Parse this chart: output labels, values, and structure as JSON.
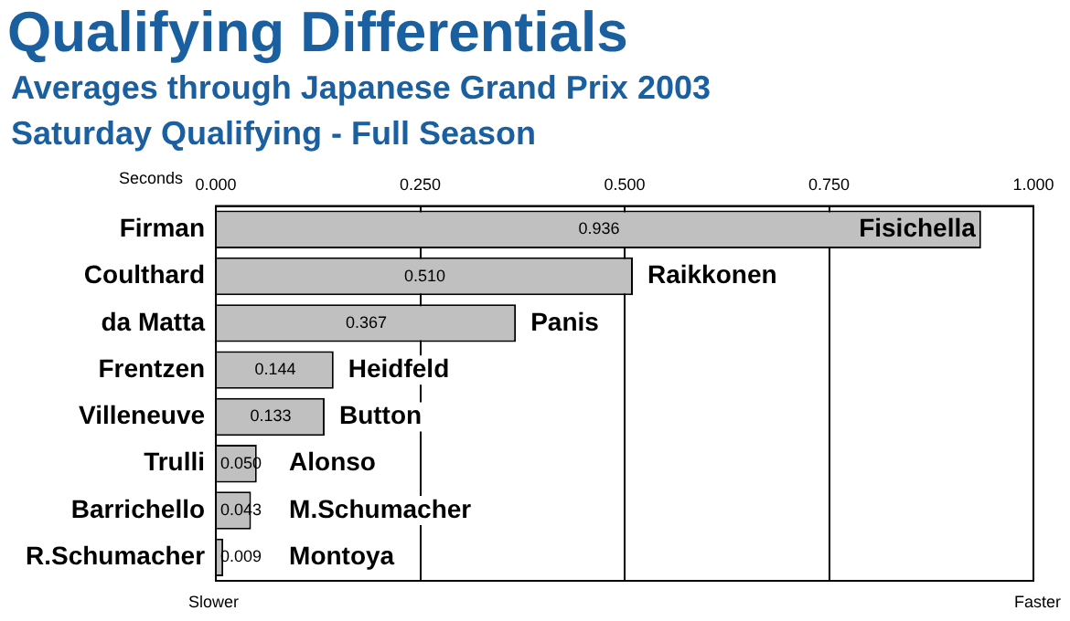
{
  "chart_data": {
    "type": "bar",
    "orientation": "horizontal",
    "title": "Qualifying Differentials",
    "subtitle": "Averages through Japanese Grand Prix 2003\nSaturday Qualifying - Full Season",
    "xlabel": "Seconds",
    "categories": [
      "Firman",
      "Coulthard",
      "da Matta",
      "Frentzen",
      "Villeneuve",
      "Trulli",
      "Barrichello",
      "R.Schumacher"
    ],
    "values": [
      0.936,
      0.51,
      0.367,
      0.144,
      0.133,
      0.05,
      0.043,
      0.009
    ],
    "value_labels": [
      "0.936",
      "0.510",
      "0.367",
      "0.144",
      "0.133",
      "0.050",
      "0.043",
      "0.009"
    ],
    "color": "#c0c0c0",
    "xlim": [
      0,
      1
    ],
    "xticks": [
      {
        "value": 0,
        "label": "0.000"
      },
      {
        "value": 0.25,
        "label": "0.250"
      },
      {
        "value": 0.5,
        "label": "0.500"
      },
      {
        "value": 0.75,
        "label": "0.750"
      },
      {
        "value": 1,
        "label": "1.000"
      }
    ],
    "grid": "x",
    "annotations": [
      {
        "text": "Fisichella",
        "x": 0.936,
        "y": "Firman"
      },
      {
        "text": "Raikkonen",
        "x": 0.51,
        "y": "Coulthard"
      },
      {
        "text": "Panis",
        "x": 0.367,
        "y": "da Matta"
      },
      {
        "text": "Heidfeld",
        "x": 0.144,
        "y": "Frentzen"
      },
      {
        "text": "Button",
        "x": 0.133,
        "y": "Villeneuve"
      },
      {
        "text": "Alonso",
        "x": 0.05,
        "y": "Trulli"
      },
      {
        "text": "M.Schumacher",
        "x": 0.043,
        "y": "Barrichello"
      },
      {
        "text": "Montoya",
        "x": 0.009,
        "y": "R.Schumacher"
      },
      "Slower",
      "Faster"
    ]
  }
}
